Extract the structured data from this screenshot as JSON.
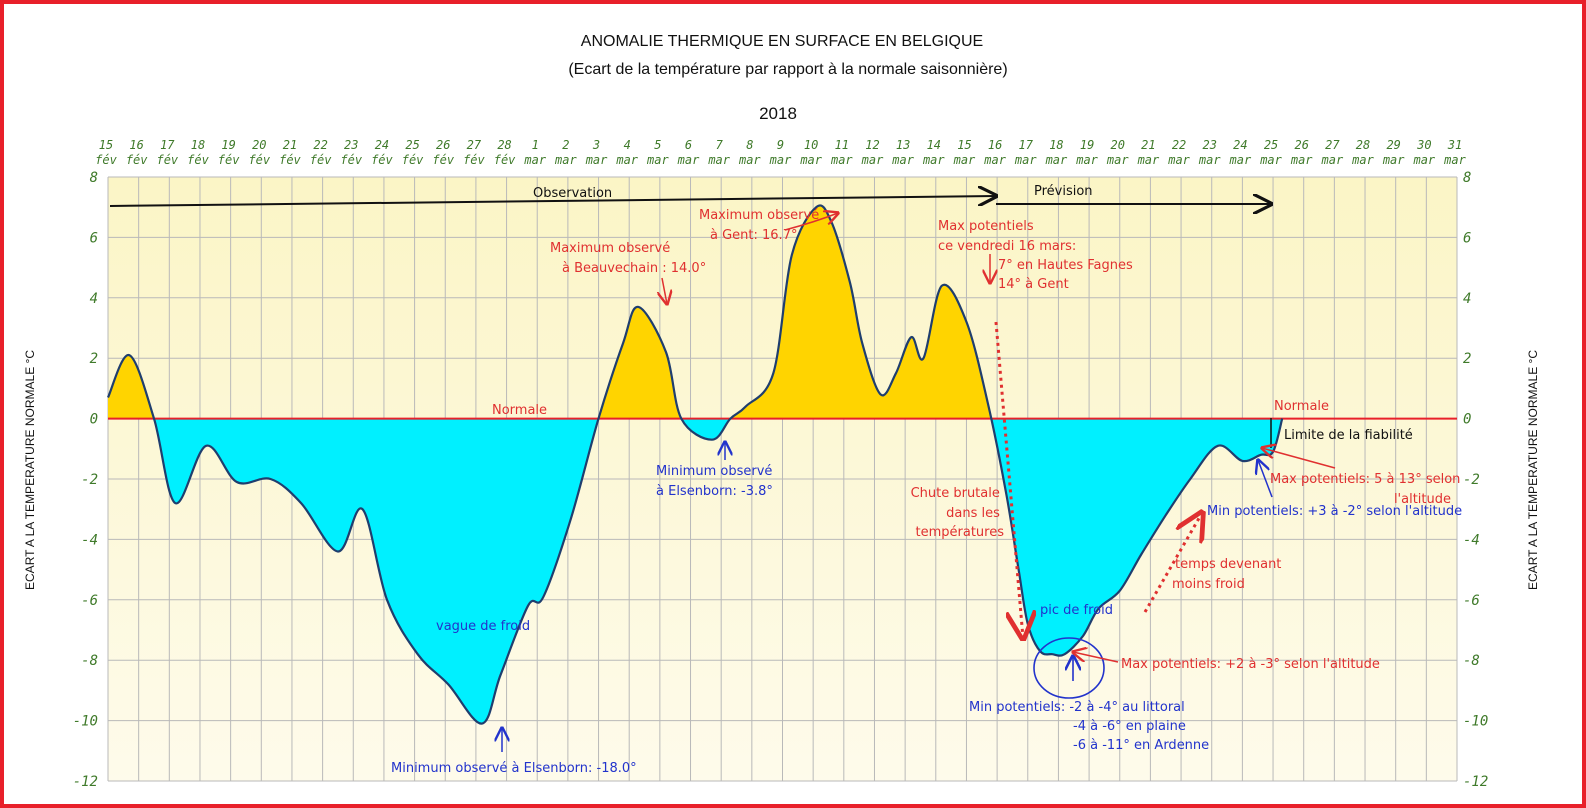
{
  "chart_data": {
    "type": "area",
    "title": "ANOMALIE THERMIQUE EN SURFACE EN BELGIQUE",
    "subtitle": "(Ecart de la température par rapport à la normale saisonnière)",
    "year": "2018",
    "ylabel": "ECART A LA TEMPERATURE NORMALE  °C",
    "ylim": [
      -12,
      8
    ],
    "yticks": [
      8,
      6,
      4,
      2,
      0,
      -2,
      -4,
      -6,
      -8,
      -10,
      -12
    ],
    "grid": true,
    "x_dates": [
      {
        "day": "15",
        "month": "fév"
      },
      {
        "day": "16",
        "month": "fév"
      },
      {
        "day": "17",
        "month": "fév"
      },
      {
        "day": "18",
        "month": "fév"
      },
      {
        "day": "19",
        "month": "fév"
      },
      {
        "day": "20",
        "month": "fév"
      },
      {
        "day": "21",
        "month": "fév"
      },
      {
        "day": "22",
        "month": "fév"
      },
      {
        "day": "23",
        "month": "fév"
      },
      {
        "day": "24",
        "month": "fév"
      },
      {
        "day": "25",
        "month": "fév"
      },
      {
        "day": "26",
        "month": "fév"
      },
      {
        "day": "27",
        "month": "fév"
      },
      {
        "day": "28",
        "month": "fév"
      },
      {
        "day": "1",
        "month": "mar"
      },
      {
        "day": "2",
        "month": "mar"
      },
      {
        "day": "3",
        "month": "mar"
      },
      {
        "day": "4",
        "month": "mar"
      },
      {
        "day": "5",
        "month": "mar"
      },
      {
        "day": "6",
        "month": "mar"
      },
      {
        "day": "7",
        "month": "mar"
      },
      {
        "day": "8",
        "month": "mar"
      },
      {
        "day": "9",
        "month": "mar"
      },
      {
        "day": "10",
        "month": "mar"
      },
      {
        "day": "11",
        "month": "mar"
      },
      {
        "day": "12",
        "month": "mar"
      },
      {
        "day": "13",
        "month": "mar"
      },
      {
        "day": "14",
        "month": "mar"
      },
      {
        "day": "15",
        "month": "mar"
      },
      {
        "day": "16",
        "month": "mar"
      },
      {
        "day": "17",
        "month": "mar"
      },
      {
        "day": "18",
        "month": "mar"
      },
      {
        "day": "19",
        "month": "mar"
      },
      {
        "day": "20",
        "month": "mar"
      },
      {
        "day": "21",
        "month": "mar"
      },
      {
        "day": "22",
        "month": "mar"
      },
      {
        "day": "23",
        "month": "mar"
      },
      {
        "day": "24",
        "month": "mar"
      },
      {
        "day": "25",
        "month": "mar"
      },
      {
        "day": "26",
        "month": "mar"
      },
      {
        "day": "27",
        "month": "mar"
      },
      {
        "day": "28",
        "month": "mar"
      },
      {
        "day": "29",
        "month": "mar"
      },
      {
        "day": "30",
        "month": "mar"
      },
      {
        "day": "31",
        "month": "mar"
      }
    ],
    "series": {
      "x": [
        0,
        0.7,
        1.5,
        2.2,
        3.2,
        4.2,
        5.3,
        6.3,
        7.5,
        8.3,
        9.1,
        10.1,
        11.1,
        12.2,
        12.8,
        13.7,
        14.2,
        15.1,
        16.0,
        16.8,
        17.3,
        18.2,
        18.7,
        19.7,
        20.3,
        20.8,
        21.7,
        22.3,
        23.1,
        23.6,
        24.2,
        24.6,
        25.2,
        25.7,
        26.2,
        26.6,
        27.2,
        28.0,
        28.7,
        29.3,
        29.7,
        30.0,
        30.4,
        30.8,
        31.2,
        31.8,
        32.3,
        33.0,
        33.7,
        34.5,
        35.3,
        36.2,
        37.0,
        37.6,
        38.0,
        38.3
      ],
      "y": [
        0.7,
        2.1,
        0,
        -2.8,
        -0.9,
        -2.1,
        -2.0,
        -2.8,
        -4.4,
        -3.0,
        -6.0,
        -7.8,
        -8.8,
        -10.1,
        -8.5,
        -6.2,
        -5.9,
        -3.3,
        0,
        2.5,
        3.7,
        2.2,
        0,
        -0.7,
        0,
        0.4,
        1.5,
        5.4,
        7.0,
        6.5,
        4.5,
        2.5,
        0.8,
        1.5,
        2.7,
        2.0,
        4.4,
        3.2,
        0.5,
        -2.5,
        -5.0,
        -6.8,
        -7.7,
        -7.8,
        -7.8,
        -7.2,
        -6.3,
        -5.7,
        -4.5,
        -3.2,
        -2.0,
        -0.9,
        -1.4,
        -1.2,
        -1.1,
        0
      ]
    },
    "colors": {
      "positive": "#ffd400",
      "negative": "#00f0ff",
      "line": "#1f3e6e",
      "normal": "#e8202a",
      "background_top": "#fbf5c6",
      "background_bottom": "#fefbeb"
    },
    "annotations": {
      "observation": "Observation",
      "prevision": "Prévision",
      "normale_left": "Normale",
      "normale_right": "Normale",
      "limite": "Limite de la fiabilité",
      "max_beauvechain": [
        "Maximum observé",
        "à Beauvechain : 14.0°"
      ],
      "max_gent": [
        "Maximum observé",
        "à Gent: 16.7°"
      ],
      "max_16mars": [
        "Max potentiels",
        "ce vendredi 16 mars:",
        "7° en Hautes Fagnes",
        "14° à Gent"
      ],
      "min_elsenborn_38": [
        "Minimum observé",
        "à Elsenborn: -3.8°"
      ],
      "vague": "vague de froid",
      "min_elsenborn_18": "Minimum observé à Elsenborn: -18.0°",
      "chute": [
        "Chute brutale",
        "dans les",
        "températures"
      ],
      "pic": "pic de froid",
      "max_pic": "Max potentiels: +2 à -3° selon l'altitude",
      "min_pic": [
        "Min potentiels: -2 à -4° au littoral",
        "-4 à -6° en plaine",
        "-6 à -11° en Ardenne"
      ],
      "temps": [
        "temps devenant",
        "moins froid"
      ],
      "min_25": "Min potentiels: +3 à -2° selon l'altitude",
      "max_25": [
        "Max potentiels: 5 à 13° selon",
        "l'altitude"
      ]
    }
  }
}
